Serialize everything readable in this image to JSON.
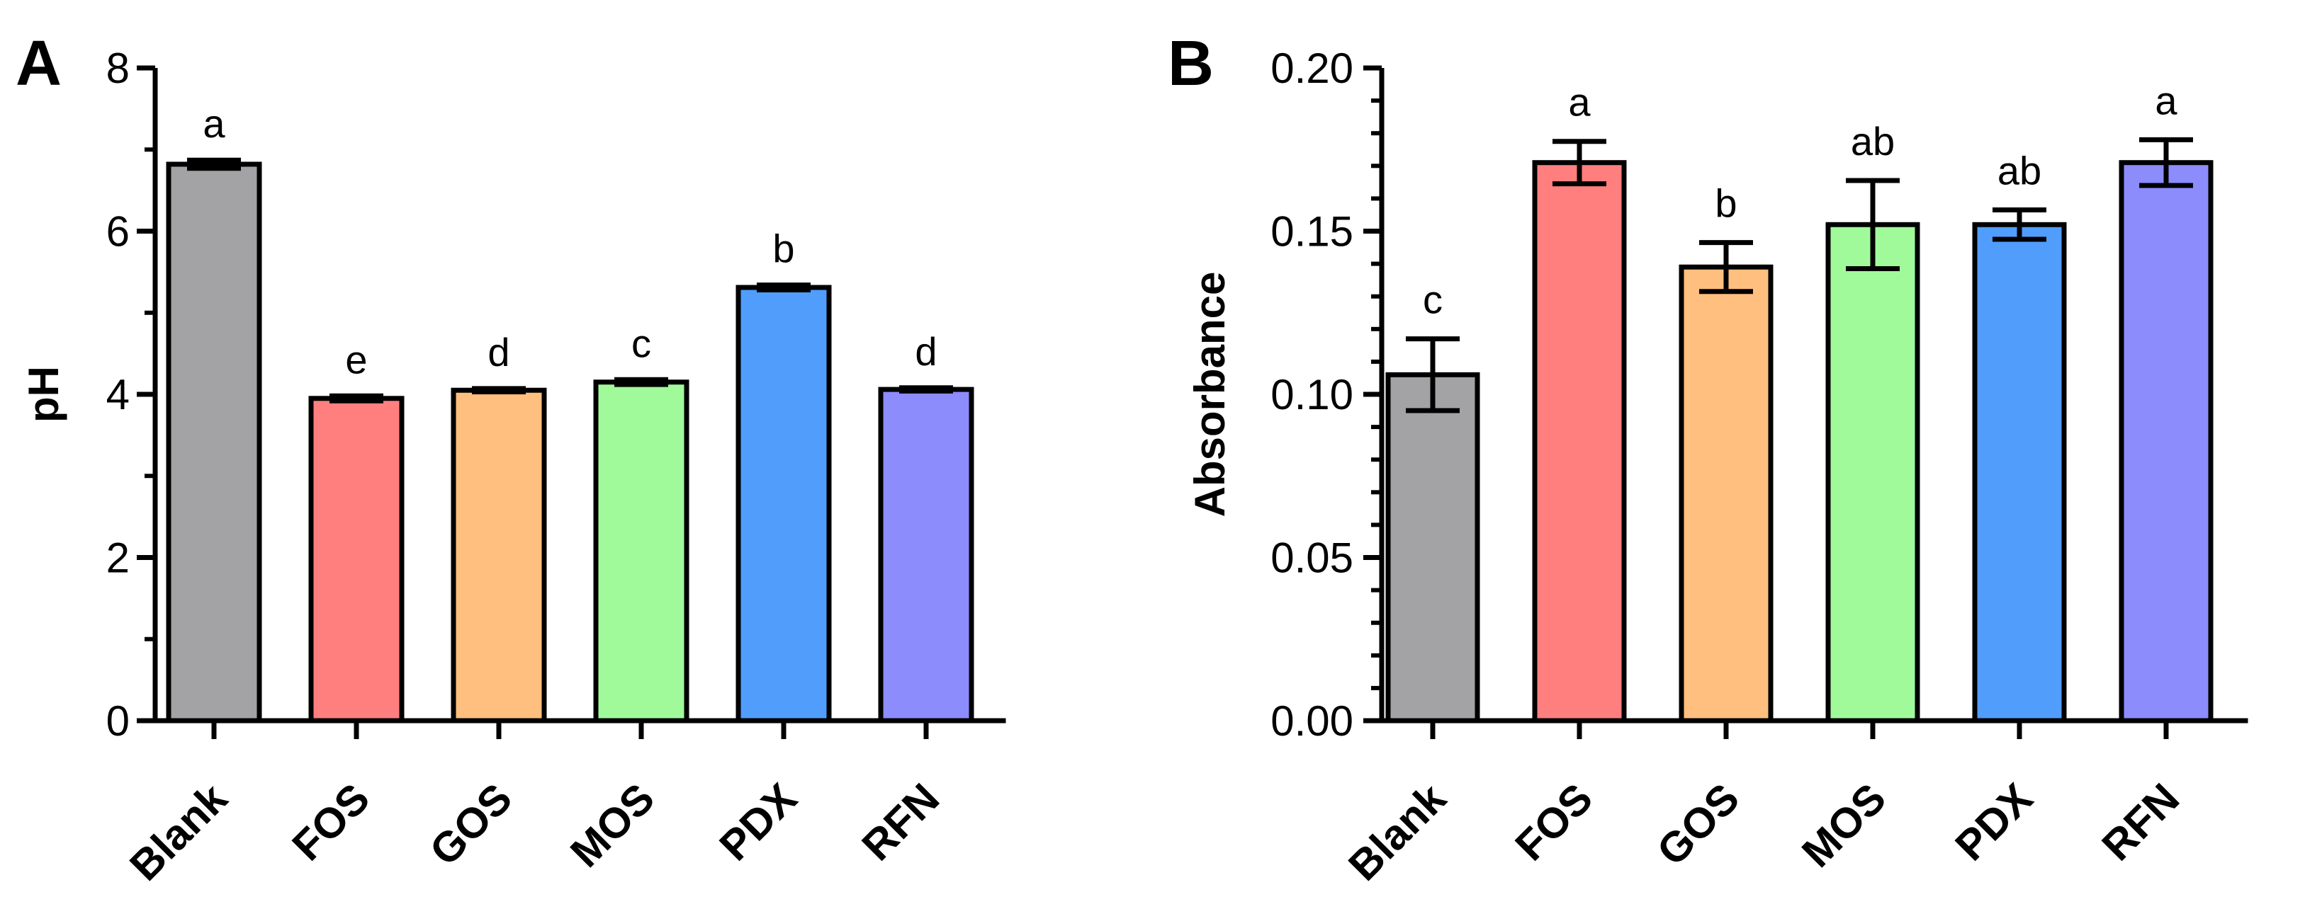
{
  "chart_data": [
    {
      "panel": "A",
      "type": "bar",
      "title": "",
      "xlabel": "",
      "ylabel": "pH",
      "ylim": [
        0,
        8
      ],
      "yticks": [
        "0",
        "2",
        "4",
        "6",
        "8"
      ],
      "categories": [
        "Blank",
        "FOS",
        "GOS",
        "MOS",
        "PDX",
        "RFN"
      ],
      "values": [
        6.82,
        3.95,
        4.05,
        4.15,
        5.31,
        4.06
      ],
      "errors": [
        0.05,
        0.03,
        0.02,
        0.03,
        0.03,
        0.02
      ],
      "significance": [
        "a",
        "e",
        "d",
        "c",
        "b",
        "d"
      ],
      "colors": [
        "#a3a2a5",
        "#ff7f7f",
        "#ffbf7f",
        "#a0fa9a",
        "#509dfb",
        "#8c8cfd"
      ]
    },
    {
      "panel": "B",
      "type": "bar",
      "title": "",
      "xlabel": "",
      "ylabel": "Absorbance",
      "ylim": [
        0,
        0.2
      ],
      "yticks": [
        "0.00",
        "0.05",
        "0.10",
        "0.15",
        "0.20"
      ],
      "categories": [
        "Blank",
        "FOS",
        "GOS",
        "MOS",
        "PDX",
        "RFN"
      ],
      "values": [
        0.106,
        0.171,
        0.139,
        0.152,
        0.152,
        0.171
      ],
      "errors": [
        0.011,
        0.0065,
        0.0075,
        0.0135,
        0.0045,
        0.007
      ],
      "significance": [
        "c",
        "a",
        "b",
        "ab",
        "ab",
        "a"
      ],
      "colors": [
        "#a3a2a5",
        "#ff7f7f",
        "#ffbf7f",
        "#a0fa9a",
        "#509dfb",
        "#8c8cfd"
      ]
    }
  ]
}
